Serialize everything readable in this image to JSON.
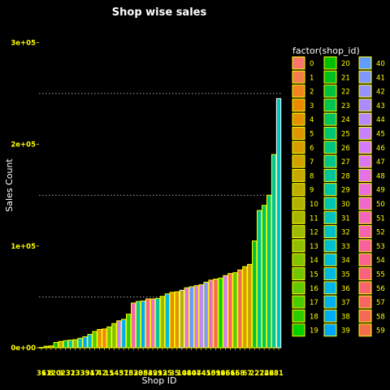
{
  "chart_data": {
    "type": "bar",
    "title": "Shop wise sales",
    "xlabel": "Shop ID",
    "ylabel": "Sales Count",
    "ylim": [
      0,
      318000
    ],
    "yticks": [
      {
        "value": 0,
        "label": "0e+00"
      },
      {
        "value": 100000,
        "label": "1e+05"
      },
      {
        "value": 200000,
        "label": "2e+05"
      },
      {
        "value": 300000,
        "label": "3e+05"
      }
    ],
    "gridlines": [
      50000,
      150000,
      250000
    ],
    "categories": [
      "36",
      "11",
      "8",
      "20",
      "9",
      "23",
      "32",
      "13",
      "33",
      "39",
      "34",
      "17",
      "4",
      "2",
      "15",
      "14",
      "45",
      "37",
      "18",
      "52",
      "30",
      "38",
      "53",
      "49",
      "29",
      "12",
      "35",
      "3",
      "5",
      "10",
      "48",
      "40",
      "47",
      "44",
      "41",
      "50",
      "59",
      "19",
      "46",
      "56",
      "16",
      "58",
      "6",
      "7",
      "22",
      "27",
      "24",
      "26",
      "28",
      "31"
    ],
    "values": [
      306,
      1500,
      1800,
      5200,
      6200,
      7000,
      7500,
      8000,
      9400,
      10800,
      13100,
      16000,
      18000,
      18500,
      20500,
      23800,
      26500,
      28000,
      33000,
      44000,
      45500,
      46000,
      48000,
      48000,
      48500,
      50500,
      53000,
      54500,
      55000,
      56500,
      59000,
      60000,
      61000,
      62000,
      64500,
      66500,
      67500,
      68500,
      71000,
      73000,
      73800,
      76500,
      79800,
      82000,
      105000,
      135000,
      140000,
      150000,
      190000,
      245000
    ],
    "highlighted": [
      "31",
      "10",
      "51"
    ],
    "palette": {
      "0": "#F8766D",
      "1": "#F47D4C",
      "2": "#EF8420",
      "3": "#EA8A00",
      "4": "#E49100",
      "5": "#DE9700",
      "6": "#D69D00",
      "7": "#CFA200",
      "8": "#C6A800",
      "9": "#BCAD00",
      "10": "#B2B200",
      "11": "#A7B700",
      "12": "#9BBB00",
      "13": "#8FC000",
      "14": "#81C300",
      "15": "#72C600",
      "16": "#60C900",
      "17": "#4ACC00",
      "18": "#2DCE00",
      "19": "#00D100",
      "20": "#00BF00",
      "21": "#00C11F",
      "22": "#00C23C",
      "23": "#00C450",
      "24": "#00C561",
      "25": "#00C672",
      "26": "#00C680",
      "27": "#00C68E",
      "28": "#00C69B",
      "29": "#00C6A8",
      "30": "#00C5B4",
      "31": "#00C3BF",
      "32": "#00C1C9",
      "33": "#00BFD2",
      "34": "#00BCDB",
      "35": "#00B9E3",
      "36": "#00B5EA",
      "37": "#00B1F1",
      "38": "#00ACF7",
      "39": "#00A6FB",
      "40": "#619CFF",
      "41": "#7F98FF",
      "42": "#9693FF",
      "43": "#A98DFF",
      "44": "#B987FF",
      "45": "#C781FF",
      "46": "#D37CFB",
      "47": "#DD77F1",
      "48": "#E472E6",
      "49": "#EA6DD9",
      "50": "#EF69CB",
      "51": "#F265BC",
      "52": "#F563AD",
      "53": "#F7629D",
      "54": "#F8628D",
      "55": "#F8637E",
      "56": "#F8646F",
      "57": "#F76762",
      "58": "#F56A56",
      "59": "#F26D4B"
    },
    "legend": {
      "title": "factor(shop_id)",
      "placement": "right",
      "columns": [
        [
          "0",
          "1",
          "2",
          "3",
          "4",
          "5",
          "6",
          "7",
          "8",
          "9",
          "10",
          "11",
          "12",
          "13",
          "14",
          "15",
          "16",
          "17",
          "18",
          "19"
        ],
        [
          "20",
          "21",
          "22",
          "23",
          "24",
          "25",
          "26",
          "27",
          "28",
          "29",
          "30",
          "31",
          "32",
          "33",
          "34",
          "35",
          "36",
          "37",
          "38",
          "39"
        ],
        [
          "40",
          "41",
          "42",
          "43",
          "44",
          "45",
          "46",
          "47",
          "48",
          "49",
          "50",
          "51",
          "52",
          "53",
          "54",
          "55",
          "56",
          "57",
          "58",
          "59"
        ]
      ]
    },
    "colors": {
      "background": "#000000",
      "bar_outline": "#FFFF00",
      "highlight_outline": "#FFFFFF",
      "axis_text": "#FFFF00",
      "label_text": "#FFFFFF",
      "gridline": "#BBBBBB"
    }
  }
}
